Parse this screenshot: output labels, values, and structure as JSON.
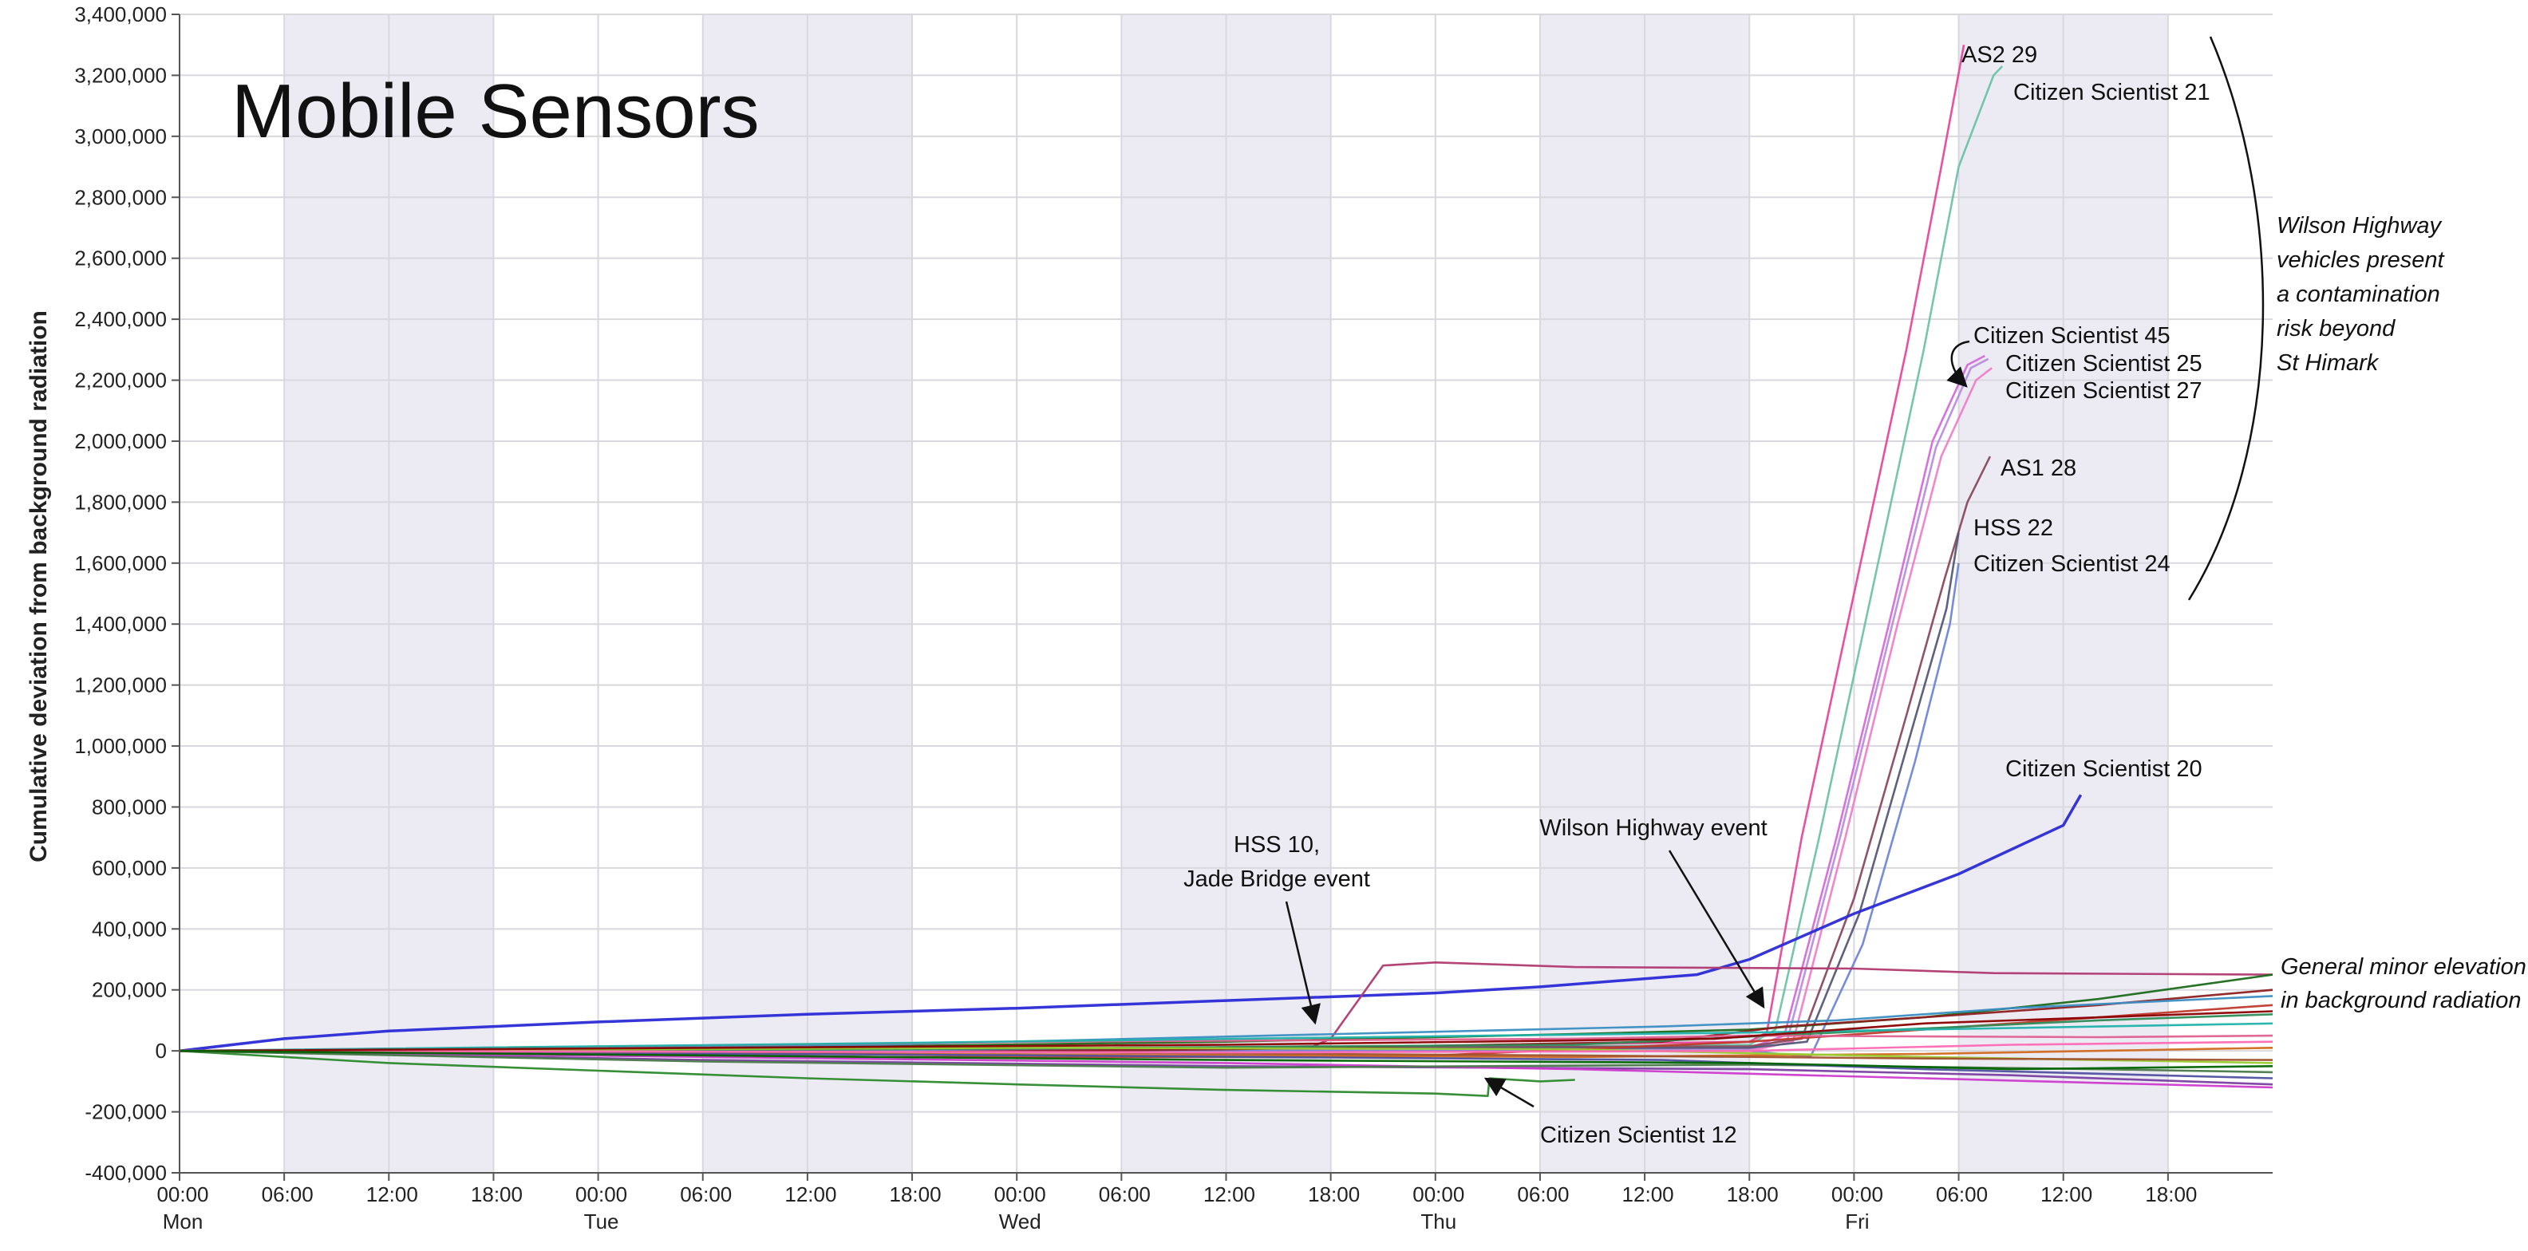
{
  "chart_data": {
    "type": "line",
    "title": "Mobile Sensors",
    "ylabel": "Cumulative deviation from background radiation",
    "xlabel": "",
    "ylim": [
      -400000,
      3400000
    ],
    "y_ticks": [
      -400000,
      -200000,
      0,
      200000,
      400000,
      600000,
      800000,
      1000000,
      1200000,
      1400000,
      1600000,
      1800000,
      2000000,
      2200000,
      2400000,
      2600000,
      2800000,
      3000000,
      3200000,
      3400000
    ],
    "y_tick_labels": [
      "-400,000",
      "-200,000",
      "0",
      "200,000",
      "400,000",
      "600,000",
      "800,000",
      "1,000,000",
      "1,200,000",
      "1,400,000",
      "1,600,000",
      "1,800,000",
      "2,000,000",
      "2,200,000",
      "2,400,000",
      "2,600,000",
      "2,800,000",
      "3,000,000",
      "3,200,000",
      "3,400,000"
    ],
    "x_range_hours": [
      0,
      120
    ],
    "x_ticks": [
      {
        "h": 0,
        "label": "00:00",
        "day": "Mon"
      },
      {
        "h": 6,
        "label": "06:00"
      },
      {
        "h": 12,
        "label": "12:00"
      },
      {
        "h": 18,
        "label": "18:00"
      },
      {
        "h": 24,
        "label": "00:00",
        "day": "Tue"
      },
      {
        "h": 30,
        "label": "06:00"
      },
      {
        "h": 36,
        "label": "12:00"
      },
      {
        "h": 42,
        "label": "18:00"
      },
      {
        "h": 48,
        "label": "00:00",
        "day": "Wed"
      },
      {
        "h": 54,
        "label": "06:00"
      },
      {
        "h": 60,
        "label": "12:00"
      },
      {
        "h": 66,
        "label": "18:00"
      },
      {
        "h": 72,
        "label": "00:00",
        "day": "Thu"
      },
      {
        "h": 78,
        "label": "06:00"
      },
      {
        "h": 84,
        "label": "12:00"
      },
      {
        "h": 90,
        "label": "18:00"
      },
      {
        "h": 96,
        "label": "00:00",
        "day": "Fri"
      },
      {
        "h": 102,
        "label": "06:00"
      },
      {
        "h": 108,
        "label": "12:00"
      },
      {
        "h": 114,
        "label": "18:00"
      }
    ],
    "night_bands_hours": [
      [
        6,
        18
      ],
      [
        30,
        42
      ],
      [
        54,
        66
      ],
      [
        78,
        90
      ],
      [
        102,
        114
      ]
    ],
    "grid": true,
    "series": [
      {
        "name": "AS2 29",
        "color": "#e8479a",
        "points": [
          [
            0,
            0
          ],
          [
            60,
            8000
          ],
          [
            90,
            30000
          ],
          [
            91,
            60000
          ],
          [
            93,
            700000
          ],
          [
            96,
            1500000
          ],
          [
            99,
            2300000
          ],
          [
            101,
            2900000
          ],
          [
            102.3,
            3300000
          ]
        ]
      },
      {
        "name": "Citizen Scientist 21",
        "color": "#6fc2a8",
        "points": [
          [
            0,
            0
          ],
          [
            60,
            5000
          ],
          [
            90,
            20000
          ],
          [
            91.5,
            70000
          ],
          [
            94,
            700000
          ],
          [
            97,
            1500000
          ],
          [
            100,
            2300000
          ],
          [
            102,
            2900000
          ],
          [
            104,
            3200000
          ],
          [
            104.5,
            3230000
          ]
        ]
      },
      {
        "name": "Citizen Scientist 45",
        "color": "#d56adb",
        "points": [
          [
            0,
            0
          ],
          [
            90,
            10000
          ],
          [
            92,
            50000
          ],
          [
            95,
            700000
          ],
          [
            98,
            1400000
          ],
          [
            100.5,
            2000000
          ],
          [
            102.5,
            2250000
          ],
          [
            103.5,
            2280000
          ]
        ]
      },
      {
        "name": "Citizen Scientist 25",
        "color": "#b98de0",
        "points": [
          [
            0,
            0
          ],
          [
            90,
            5000
          ],
          [
            92.2,
            40000
          ],
          [
            95.2,
            700000
          ],
          [
            98.2,
            1400000
          ],
          [
            100.7,
            1980000
          ],
          [
            102.7,
            2240000
          ],
          [
            103.7,
            2270000
          ]
        ]
      },
      {
        "name": "Citizen Scientist 27",
        "color": "#f080c8",
        "points": [
          [
            0,
            0
          ],
          [
            90,
            0
          ],
          [
            92.5,
            30000
          ],
          [
            95.5,
            700000
          ],
          [
            98.5,
            1400000
          ],
          [
            101,
            1950000
          ],
          [
            103,
            2200000
          ],
          [
            103.9,
            2240000
          ]
        ]
      },
      {
        "name": "AS1 28",
        "color": "#8a4a5e",
        "points": [
          [
            0,
            0
          ],
          [
            90,
            15000
          ],
          [
            93,
            40000
          ],
          [
            96,
            500000
          ],
          [
            99,
            1100000
          ],
          [
            101.2,
            1550000
          ],
          [
            102.5,
            1800000
          ],
          [
            103.8,
            1950000
          ]
        ]
      },
      {
        "name": "HSS 22",
        "color": "#555a78",
        "points": [
          [
            0,
            0
          ],
          [
            90,
            10000
          ],
          [
            93.3,
            30000
          ],
          [
            96.3,
            450000
          ],
          [
            99.3,
            1050000
          ],
          [
            101.3,
            1450000
          ],
          [
            102,
            1700000
          ]
        ]
      },
      {
        "name": "Citizen Scientist 24",
        "color": "#6f86d8",
        "points": [
          [
            0,
            0
          ],
          [
            90,
            0
          ],
          [
            93.5,
            -20000
          ],
          [
            96.5,
            350000
          ],
          [
            99.5,
            950000
          ],
          [
            101.5,
            1400000
          ],
          [
            102,
            1600000
          ]
        ]
      },
      {
        "name": "Citizen Scientist 20",
        "color": "#2a2ad6",
        "points": [
          [
            0,
            0
          ],
          [
            6,
            40000
          ],
          [
            12,
            65000
          ],
          [
            24,
            95000
          ],
          [
            36,
            120000
          ],
          [
            48,
            140000
          ],
          [
            60,
            165000
          ],
          [
            72,
            190000
          ],
          [
            78,
            210000
          ],
          [
            87,
            250000
          ],
          [
            90,
            300000
          ],
          [
            96,
            450000
          ],
          [
            102,
            580000
          ],
          [
            108,
            740000
          ],
          [
            109,
            840000
          ]
        ]
      },
      {
        "name": "HSS 10",
        "color": "#b03a70",
        "points": [
          [
            0,
            0
          ],
          [
            60,
            10000
          ],
          [
            65,
            15000
          ],
          [
            66,
            40000
          ],
          [
            68,
            200000
          ],
          [
            69,
            280000
          ],
          [
            72,
            290000
          ],
          [
            80,
            275000
          ],
          [
            96,
            270000
          ],
          [
            104,
            255000
          ],
          [
            120,
            250000
          ]
        ]
      },
      {
        "name": "Citizen Scientist 12",
        "color": "#2c8a2c",
        "points": [
          [
            0,
            0
          ],
          [
            12,
            -40000
          ],
          [
            24,
            -65000
          ],
          [
            36,
            -90000
          ],
          [
            48,
            -110000
          ],
          [
            60,
            -128000
          ],
          [
            72,
            -140000
          ],
          [
            75,
            -148000
          ],
          [
            75.1,
            -90000
          ],
          [
            78,
            -100000
          ],
          [
            80,
            -95000
          ]
        ]
      },
      {
        "name": "",
        "color": "#1a6b1a",
        "points": [
          [
            0,
            0
          ],
          [
            40,
            15000
          ],
          [
            60,
            30000
          ],
          [
            80,
            55000
          ],
          [
            90,
            70000
          ],
          [
            100,
            110000
          ],
          [
            110,
            170000
          ],
          [
            120,
            250000
          ]
        ]
      },
      {
        "name": "",
        "color": "#8e1f1f",
        "points": [
          [
            0,
            0
          ],
          [
            30,
            -10000
          ],
          [
            60,
            5000
          ],
          [
            85,
            30000
          ],
          [
            92,
            80000
          ],
          [
            100,
            110000
          ],
          [
            110,
            150000
          ],
          [
            120,
            200000
          ]
        ]
      },
      {
        "name": "",
        "color": "#3b8ec2",
        "points": [
          [
            0,
            0
          ],
          [
            40,
            20000
          ],
          [
            70,
            60000
          ],
          [
            85,
            80000
          ],
          [
            95,
            100000
          ],
          [
            105,
            140000
          ],
          [
            120,
            180000
          ]
        ]
      },
      {
        "name": "",
        "color": "#c0392b",
        "points": [
          [
            0,
            0
          ],
          [
            40,
            -20000
          ],
          [
            70,
            -20000
          ],
          [
            90,
            30000
          ],
          [
            100,
            70000
          ],
          [
            120,
            150000
          ]
        ]
      },
      {
        "name": "",
        "color": "#7a3fa0",
        "points": [
          [
            0,
            0
          ],
          [
            30,
            -30000
          ],
          [
            60,
            -50000
          ],
          [
            90,
            -60000
          ],
          [
            105,
            -80000
          ],
          [
            120,
            -110000
          ]
        ]
      },
      {
        "name": "",
        "color": "#cc3bcc",
        "points": [
          [
            0,
            0
          ],
          [
            30,
            -20000
          ],
          [
            60,
            -40000
          ],
          [
            80,
            -60000
          ],
          [
            100,
            -90000
          ],
          [
            120,
            -120000
          ]
        ]
      },
      {
        "name": "",
        "color": "#4a7a4a",
        "points": [
          [
            0,
            0
          ],
          [
            30,
            -35000
          ],
          [
            60,
            -55000
          ],
          [
            90,
            -45000
          ],
          [
            110,
            -60000
          ],
          [
            120,
            -70000
          ]
        ]
      },
      {
        "name": "",
        "color": "#d2691e",
        "points": [
          [
            0,
            0
          ],
          [
            40,
            -10000
          ],
          [
            80,
            -20000
          ],
          [
            100,
            -10000
          ],
          [
            120,
            10000
          ]
        ]
      },
      {
        "name": "",
        "color": "#2e8b57",
        "points": [
          [
            0,
            0
          ],
          [
            40,
            5000
          ],
          [
            80,
            20000
          ],
          [
            95,
            60000
          ],
          [
            110,
            100000
          ],
          [
            120,
            120000
          ]
        ]
      },
      {
        "name": "",
        "color": "#e06090",
        "points": [
          [
            0,
            0
          ],
          [
            50,
            30000
          ],
          [
            80,
            40000
          ],
          [
            90,
            50000
          ],
          [
            110,
            45000
          ],
          [
            120,
            50000
          ]
        ]
      },
      {
        "name": "",
        "color": "#5050a0",
        "points": [
          [
            0,
            0
          ],
          [
            50,
            -15000
          ],
          [
            85,
            -30000
          ],
          [
            100,
            -60000
          ],
          [
            120,
            -90000
          ]
        ]
      },
      {
        "name": "",
        "color": "#9acd32",
        "points": [
          [
            0,
            0
          ],
          [
            50,
            10000
          ],
          [
            80,
            5000
          ],
          [
            100,
            -20000
          ],
          [
            120,
            -40000
          ]
        ]
      },
      {
        "name": "",
        "color": "#a0522d",
        "points": [
          [
            0,
            0
          ],
          [
            50,
            -5000
          ],
          [
            80,
            -15000
          ],
          [
            100,
            -25000
          ],
          [
            120,
            -30000
          ]
        ]
      },
      {
        "name": "",
        "color": "#20b2aa",
        "points": [
          [
            0,
            0
          ],
          [
            40,
            25000
          ],
          [
            75,
            50000
          ],
          [
            90,
            60000
          ],
          [
            120,
            90000
          ]
        ]
      },
      {
        "name": "",
        "color": "#ff69b4",
        "points": [
          [
            0,
            0
          ],
          [
            60,
            -5000
          ],
          [
            90,
            0
          ],
          [
            105,
            20000
          ],
          [
            120,
            30000
          ]
        ]
      },
      {
        "name": "",
        "color": "#8b0000",
        "points": [
          [
            0,
            0
          ],
          [
            60,
            20000
          ],
          [
            88,
            40000
          ],
          [
            100,
            90000
          ],
          [
            120,
            130000
          ]
        ]
      },
      {
        "name": "",
        "color": "#006400",
        "points": [
          [
            0,
            0
          ],
          [
            60,
            -30000
          ],
          [
            90,
            -40000
          ],
          [
            105,
            -60000
          ],
          [
            120,
            -50000
          ]
        ]
      }
    ],
    "annotations": [
      {
        "text": "AS2 29"
      },
      {
        "text": "Citizen Scientist 21"
      },
      {
        "text": "Citizen Scientist 45"
      },
      {
        "text": "Citizen Scientist 25"
      },
      {
        "text": "Citizen Scientist 27"
      },
      {
        "text": "AS1 28"
      },
      {
        "text": "HSS 22"
      },
      {
        "text": "Citizen Scientist 24"
      },
      {
        "text": "Citizen Scientist 20"
      },
      {
        "text": "HSS 10,"
      },
      {
        "text": "Jade Bridge event"
      },
      {
        "text": "Wilson Highway event"
      },
      {
        "text": "Citizen Scientist 12"
      },
      {
        "text": "Wilson Highway"
      },
      {
        "text": "vehicles  present"
      },
      {
        "text": "a contamination"
      },
      {
        "text": "risk beyond"
      },
      {
        "text": "St Himark"
      },
      {
        "text": "General minor elevation"
      },
      {
        "text": "in background radiation"
      }
    ]
  }
}
